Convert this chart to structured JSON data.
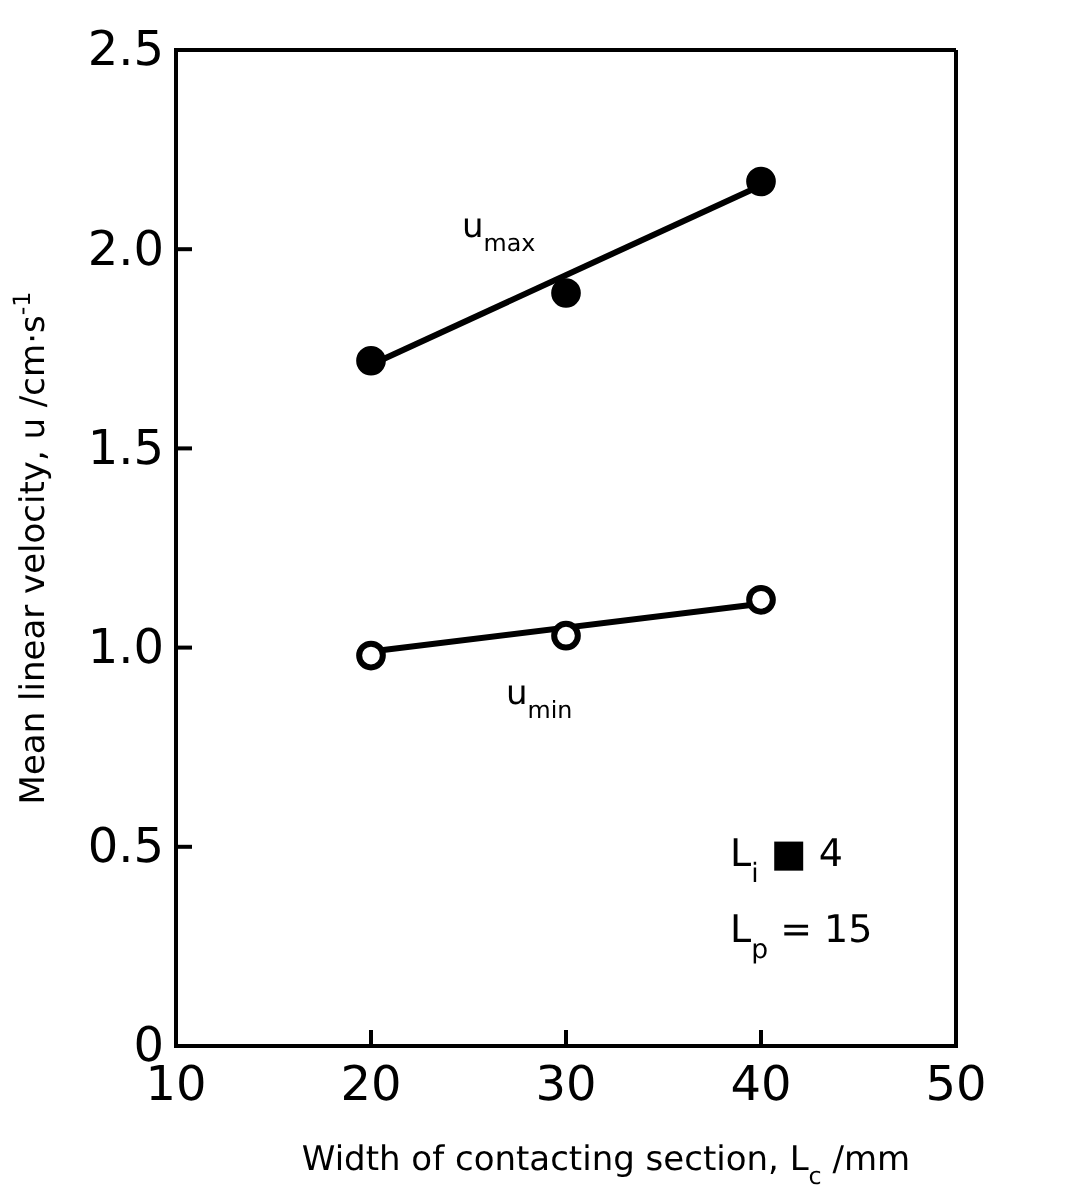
{
  "chart_data": {
    "type": "scatter",
    "xlabel": "Width of contacting section, L$_{c}$ /mm",
    "ylabel": "Mean linear velocity, u /cm·s$^{-1}$",
    "xlim": [
      10,
      50
    ],
    "xticks": [
      10,
      20,
      30,
      40,
      50
    ],
    "ylim": [
      0,
      2.5
    ],
    "yticks": [
      0,
      0.5,
      {
        "value": 1,
        "label": "1.0"
      },
      1.5,
      {
        "value": 2,
        "label": "2.0"
      },
      2.5
    ],
    "grid": false,
    "series": [
      {
        "name": "u$_{max}$",
        "color": "#000000",
        "marker": "circle",
        "x": [
          20,
          30,
          40
        ],
        "values": [
          1.72,
          1.89,
          2.17
        ]
      },
      {
        "name": "u$_{min}$",
        "color": "#ffffff",
        "marker": "circle",
        "x": [
          20,
          30,
          40
        ],
        "values": [
          0.98,
          1.03,
          1.12
        ]
      },
      {
        "type": "line",
        "color": "#000000",
        "x": [
          20,
          40
        ],
        "values": [
          1.71,
          2.16
        ],
        "marker": "none"
      },
      {
        "type": "line",
        "color": "#000000",
        "x": [
          20,
          40
        ],
        "values": [
          0.99,
          1.11
        ],
        "marker": "none"
      }
    ],
    "annotations": [
      "L$_{i}$ ■ 4",
      "L$_{p}$ = 15"
    ]
  }
}
